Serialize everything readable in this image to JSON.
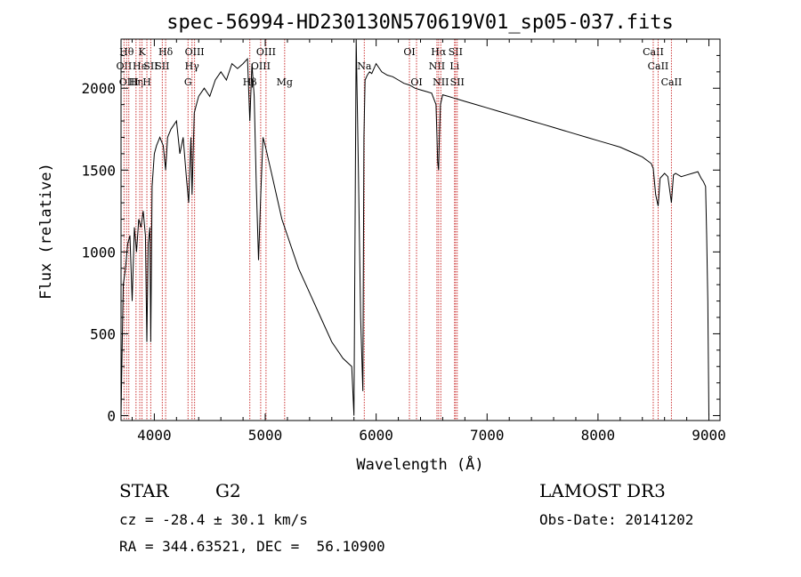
{
  "chart_data": {
    "type": "line",
    "title": "spec-56994-HD230130N570619V01_sp05-037.fits",
    "xlabel": "Wavelength (Å)",
    "ylabel": "Flux (relative)",
    "xlim": [
      3700,
      9100
    ],
    "ylim": [
      -30,
      2300
    ],
    "x_ticks": [
      4000,
      5000,
      6000,
      7000,
      8000,
      9000
    ],
    "y_ticks": [
      0,
      500,
      1000,
      1500,
      2000
    ],
    "series": [
      {
        "name": "spectrum",
        "x": [
          3700,
          3710,
          3720,
          3740,
          3760,
          3780,
          3800,
          3820,
          3840,
          3860,
          3880,
          3900,
          3920,
          3933,
          3945,
          3960,
          3968,
          3980,
          4000,
          4020,
          4050,
          4080,
          4102,
          4120,
          4150,
          4200,
          4230,
          4260,
          4290,
          4310,
          4330,
          4340,
          4360,
          4380,
          4400,
          4450,
          4500,
          4550,
          4600,
          4650,
          4700,
          4750,
          4800,
          4840,
          4861,
          4880,
          4900,
          4920,
          4940,
          4960,
          4980,
          5000,
          5050,
          5100,
          5150,
          5200,
          5300,
          5400,
          5500,
          5600,
          5700,
          5780,
          5800,
          5820,
          5840,
          5860,
          5880,
          5890,
          5900,
          5920,
          5940,
          5960,
          6000,
          6050,
          6100,
          6150,
          6200,
          6250,
          6300,
          6350,
          6400,
          6450,
          6500,
          6540,
          6555,
          6563,
          6570,
          6580,
          6600,
          6650,
          6700,
          6750,
          6800,
          6900,
          7000,
          7100,
          7200,
          7300,
          7400,
          7500,
          7600,
          7700,
          7800,
          7900,
          8000,
          8100,
          8200,
          8300,
          8400,
          8480,
          8498,
          8520,
          8542,
          8560,
          8600,
          8630,
          8662,
          8680,
          8700,
          8750,
          8800,
          8850,
          8900,
          8930,
          8950,
          8970,
          8980,
          8990,
          9000
        ],
        "values": [
          0,
          400,
          800,
          900,
          1050,
          1100,
          700,
          1150,
          1000,
          1200,
          1150,
          1250,
          1100,
          450,
          1050,
          1150,
          450,
          1400,
          1600,
          1650,
          1700,
          1650,
          1500,
          1700,
          1750,
          1800,
          1600,
          1700,
          1450,
          1300,
          1700,
          1350,
          1850,
          1900,
          1950,
          2000,
          1950,
          2050,
          2100,
          2050,
          2150,
          2120,
          2150,
          2180,
          1800,
          2150,
          1950,
          1400,
          950,
          1350,
          1700,
          1650,
          1500,
          1350,
          1200,
          1100,
          900,
          750,
          600,
          450,
          350,
          300,
          0,
          2300,
          1500,
          600,
          150,
          1700,
          2050,
          2080,
          2100,
          2090,
          2150,
          2100,
          2080,
          2070,
          2050,
          2030,
          2020,
          2000,
          1990,
          1980,
          1970,
          1900,
          1550,
          1500,
          1700,
          1900,
          1960,
          1950,
          1940,
          1930,
          1920,
          1900,
          1880,
          1860,
          1840,
          1820,
          1800,
          1780,
          1760,
          1740,
          1720,
          1700,
          1680,
          1660,
          1640,
          1610,
          1580,
          1540,
          1510,
          1350,
          1280,
          1450,
          1480,
          1460,
          1300,
          1470,
          1480,
          1460,
          1470,
          1480,
          1490,
          1450,
          1430,
          1400,
          1100,
          700,
          0
        ]
      }
    ],
    "lines": [
      {
        "wl": 3727,
        "label": "OII",
        "row": 2
      },
      {
        "wl": 3750,
        "label": "Hθ",
        "row": 1
      },
      {
        "wl": 3770,
        "label": "OIII",
        "row": 3
      },
      {
        "wl": 3835,
        "label": "Hη",
        "row": 3
      },
      {
        "wl": 3869,
        "label": "He",
        "row": 2
      },
      {
        "wl": 3889,
        "label": "K",
        "row": 1
      },
      {
        "wl": 3933,
        "label": "H",
        "row": 3
      },
      {
        "wl": 3968,
        "label": "SII",
        "row": 2
      },
      {
        "wl": 4072,
        "label": "SII",
        "row": 2
      },
      {
        "wl": 4102,
        "label": "Hδ",
        "row": 1
      },
      {
        "wl": 4304,
        "label": "G",
        "row": 3
      },
      {
        "wl": 4340,
        "label": "Hγ",
        "row": 2
      },
      {
        "wl": 4363,
        "label": "OIII",
        "row": 1
      },
      {
        "wl": 4861,
        "label": "Hβ",
        "row": 3
      },
      {
        "wl": 4959,
        "label": "OIII",
        "row": 2
      },
      {
        "wl": 5007,
        "label": "OIII",
        "row": 1
      },
      {
        "wl": 5175,
        "label": "Mg",
        "row": 3
      },
      {
        "wl": 5893,
        "label": "Na",
        "row": 2
      },
      {
        "wl": 6300,
        "label": "OI",
        "row": 1
      },
      {
        "wl": 6364,
        "label": "OI",
        "row": 3
      },
      {
        "wl": 6548,
        "label": "NII",
        "row": 2
      },
      {
        "wl": 6563,
        "label": "Hα",
        "row": 1
      },
      {
        "wl": 6583,
        "label": "NII",
        "row": 3
      },
      {
        "wl": 6707,
        "label": "Li",
        "row": 2
      },
      {
        "wl": 6716,
        "label": "SII",
        "row": 1
      },
      {
        "wl": 6731,
        "label": "SII",
        "row": 3
      },
      {
        "wl": 8498,
        "label": "CaII",
        "row": 1
      },
      {
        "wl": 8542,
        "label": "CaII",
        "row": 2
      },
      {
        "wl": 8662,
        "label": "CaII",
        "row": 3
      }
    ]
  },
  "info": {
    "object_class": "STAR",
    "subclass": "G2",
    "survey": "LAMOST DR3",
    "redshift_text": "cz = -28.4 ± 30.1 km/s",
    "obs_date_text": "Obs-Date: 20141202",
    "coords_text": "RA = 344.63521, DEC =  56.10900"
  },
  "colors": {
    "line_marker": "#cc3333",
    "spectrum": "#000000",
    "axes": "#000000"
  }
}
